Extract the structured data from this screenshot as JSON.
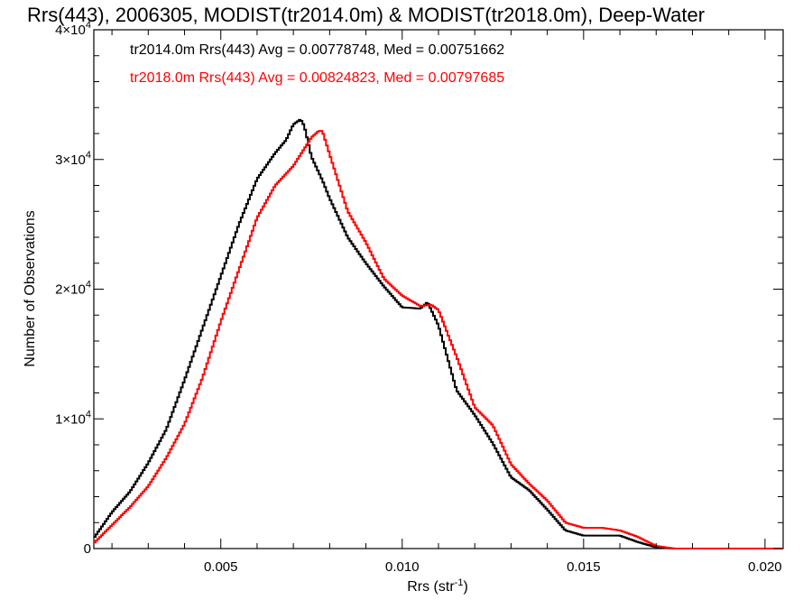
{
  "chart_data": {
    "type": "line",
    "step": true,
    "title": "Rrs(443), 2006305, MODIST(tr2014.0m) & MODIST(tr2018.0m), Deep-Water",
    "xlabel": "Rrs (str",
    "xlabel_sup": "-1",
    "xlabel_close": ")",
    "ylabel": "Number of Observations",
    "xlim": [
      0.0015,
      0.0205
    ],
    "ylim": [
      0,
      40000
    ],
    "xticks": [
      {
        "value": 0.005,
        "label": "0.005"
      },
      {
        "value": 0.01,
        "label": "0.010"
      },
      {
        "value": 0.015,
        "label": "0.015"
      },
      {
        "value": 0.02,
        "label": "0.020"
      }
    ],
    "yticks": [
      {
        "value": 0,
        "label": "0",
        "sup": ""
      },
      {
        "value": 10000,
        "label": "1×10",
        "sup": "4"
      },
      {
        "value": 20000,
        "label": "2×10",
        "sup": "4"
      },
      {
        "value": 30000,
        "label": "3×10",
        "sup": "4"
      },
      {
        "value": 40000,
        "label": "4×10",
        "sup": "4"
      }
    ],
    "grid": false,
    "legend_position": "top-left",
    "series": [
      {
        "label": "tr2014.0m Rrs(443) Avg = 0.00778748, Med = 0.00751662",
        "color": "#000000",
        "x": [
          0.0015,
          0.002,
          0.0025,
          0.003,
          0.0035,
          0.004,
          0.0045,
          0.005,
          0.0055,
          0.006,
          0.0065,
          0.0068,
          0.007,
          0.0072,
          0.0073,
          0.0075,
          0.0078,
          0.008,
          0.0085,
          0.009,
          0.0095,
          0.01,
          0.0105,
          0.0107,
          0.011,
          0.0115,
          0.012,
          0.0125,
          0.013,
          0.0135,
          0.014,
          0.0145,
          0.015,
          0.0155,
          0.016,
          0.0165,
          0.017,
          0.0175,
          0.018,
          0.019,
          0.0205
        ],
        "values": [
          800,
          2800,
          4400,
          6600,
          9200,
          13000,
          17000,
          21000,
          25000,
          28500,
          30500,
          31500,
          32700,
          33100,
          32600,
          30200,
          28400,
          27000,
          24000,
          22000,
          20200,
          18600,
          18500,
          19000,
          17200,
          12200,
          10300,
          8100,
          5500,
          4500,
          3000,
          1400,
          1000,
          1000,
          1000,
          500,
          100,
          0,
          0,
          0,
          0
        ]
      },
      {
        "label": "tr2018.0m Rrs(443) Avg = 0.00824823, Med = 0.00797685",
        "color": "#ff0000",
        "x": [
          0.0015,
          0.002,
          0.0025,
          0.003,
          0.0035,
          0.004,
          0.0045,
          0.005,
          0.0055,
          0.006,
          0.0065,
          0.007,
          0.0075,
          0.0077,
          0.0078,
          0.008,
          0.0085,
          0.009,
          0.0095,
          0.01,
          0.0105,
          0.0108,
          0.011,
          0.0115,
          0.012,
          0.0125,
          0.013,
          0.0135,
          0.014,
          0.0145,
          0.015,
          0.0155,
          0.016,
          0.0165,
          0.017,
          0.0175,
          0.018,
          0.019,
          0.0205
        ],
        "values": [
          400,
          1800,
          3200,
          4800,
          7000,
          9600,
          13200,
          17500,
          21500,
          25500,
          28000,
          29500,
          31700,
          32200,
          32200,
          30400,
          26000,
          23600,
          20800,
          19500,
          18700,
          18800,
          18400,
          14800,
          10900,
          9500,
          6500,
          5000,
          3700,
          2000,
          1600,
          1600,
          1400,
          900,
          200,
          0,
          0,
          0,
          0
        ]
      }
    ]
  }
}
